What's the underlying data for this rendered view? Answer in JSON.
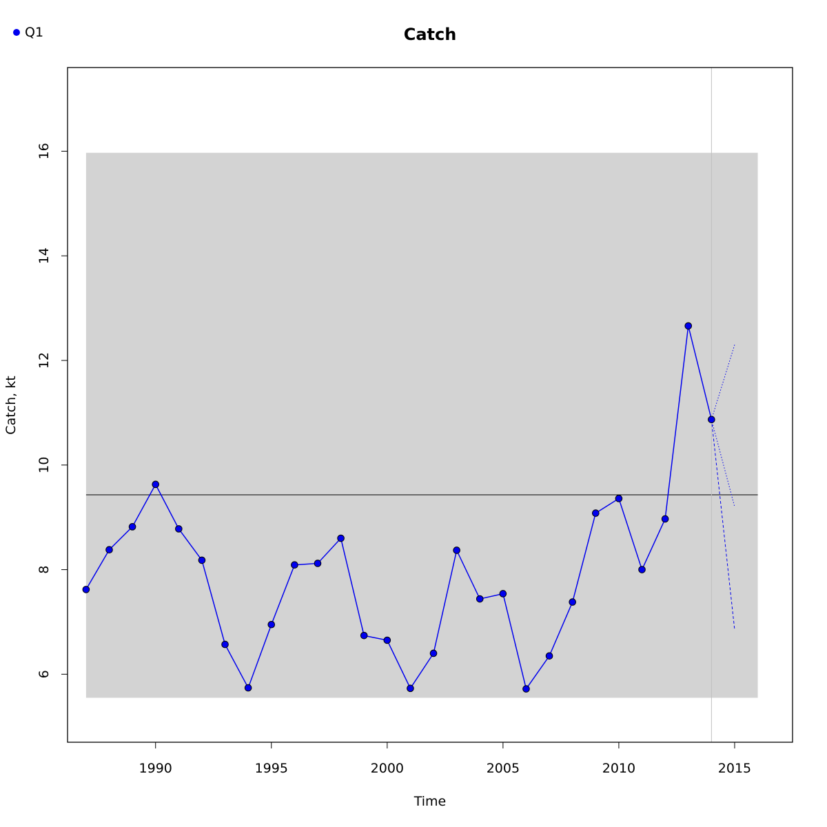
{
  "chart_data": {
    "type": "line",
    "title": "Catch",
    "xlabel": "Time",
    "ylabel": "Catch, kt",
    "xlim": [
      1986.2,
      2017.5
    ],
    "ylim": [
      4.7,
      17.6
    ],
    "x_ticks": [
      1990,
      1995,
      2000,
      2005,
      2010,
      2015
    ],
    "y_ticks": [
      6,
      8,
      10,
      12,
      14,
      16
    ],
    "legend": {
      "position": "top-left",
      "entries": [
        {
          "label": "Q1",
          "color": "#0000ee"
        }
      ]
    },
    "band": {
      "x": [
        1987,
        2016
      ],
      "y": [
        5.55,
        15.97
      ],
      "color": "#d3d3d3"
    },
    "hline": {
      "y": 9.43,
      "color": "#000000"
    },
    "vline": {
      "x": 2014,
      "color": "#c0c0c0"
    },
    "series": [
      {
        "name": "Q1",
        "color": "#0000ee",
        "x": [
          1987,
          1988,
          1989,
          1990,
          1991,
          1992,
          1993,
          1994,
          1995,
          1996,
          1997,
          1998,
          1999,
          2000,
          2001,
          2002,
          2003,
          2004,
          2005,
          2006,
          2007,
          2008,
          2009,
          2010,
          2011,
          2012,
          2013,
          2014
        ],
        "values": [
          7.62,
          8.38,
          8.82,
          9.63,
          8.78,
          8.18,
          6.57,
          5.74,
          6.95,
          8.09,
          8.12,
          8.6,
          6.74,
          6.65,
          5.73,
          6.4,
          8.37,
          7.44,
          7.54,
          5.72,
          6.35,
          7.38,
          9.08,
          9.36,
          8.0,
          8.97,
          12.66,
          10.87
        ]
      }
    ],
    "projections": [
      {
        "x": [
          2014,
          2015
        ],
        "values": [
          10.87,
          12.3
        ],
        "style": "dotted"
      },
      {
        "x": [
          2014,
          2015
        ],
        "values": [
          10.87,
          9.2
        ],
        "style": "dotted"
      },
      {
        "x": [
          2014,
          2015
        ],
        "values": [
          10.87,
          6.85
        ],
        "style": "dashed"
      }
    ]
  }
}
